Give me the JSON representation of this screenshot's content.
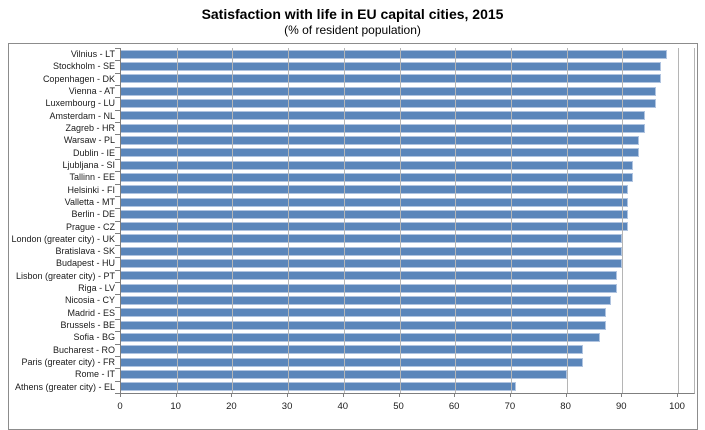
{
  "chart_data": {
    "type": "bar",
    "orientation": "horizontal",
    "title": "Satisfaction with life in EU capital cities, 2015",
    "subtitle": "(% of resident population)",
    "categories": [
      "Vilnius - LT",
      "Stockholm - SE",
      "Copenhagen - DK",
      "Vienna - AT",
      "Luxembourg - LU",
      "Amsterdam - NL",
      "Zagreb - HR",
      "Warsaw - PL",
      "Dublin - IE",
      "Ljubljana - SI",
      "Tallinn - EE",
      "Helsinki - FI",
      "Valletta - MT",
      "Berlin - DE",
      "Prague - CZ",
      "London (greater city) - UK",
      "Bratislava - SK",
      "Budapest - HU",
      "Lisbon (greater city) - PT",
      "Riga - LV",
      "Nicosia - CY",
      "Madrid - ES",
      "Brussels - BE",
      "Sofia - BG",
      "Bucharest - RO",
      "Paris (greater city) - FR",
      "Rome - IT",
      "Athens (greater city) - EL"
    ],
    "values": [
      98,
      97,
      97,
      96,
      96,
      94,
      94,
      93,
      93,
      92,
      92,
      91,
      91,
      91,
      91,
      90,
      90,
      90,
      89,
      89,
      88,
      87,
      87,
      86,
      83,
      83,
      80,
      71
    ],
    "value_unit": "%",
    "xlabel": "",
    "ylabel": "",
    "xlim": [
      0,
      100
    ],
    "x_ticks": [
      0,
      10,
      20,
      30,
      40,
      50,
      60,
      70,
      80,
      90,
      100
    ],
    "grid": "vertical",
    "legend": "none",
    "sort": "descending",
    "bar_color": "#5b86ba",
    "bar_border_color": "#b0c4e0",
    "gridline_color": "#b5b5b5",
    "axis_color": "#7f7f7f"
  }
}
